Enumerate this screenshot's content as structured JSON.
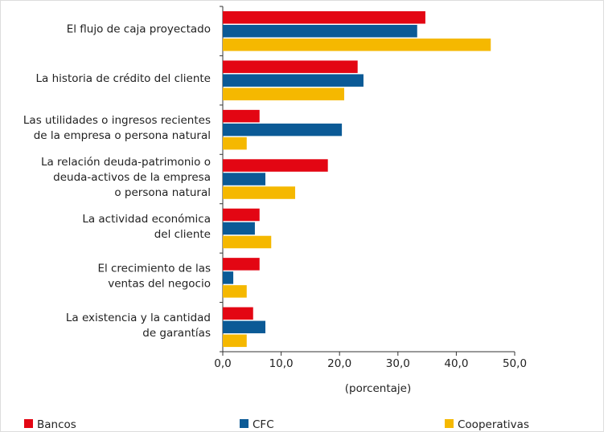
{
  "chart_data": {
    "type": "bar",
    "orientation": "horizontal",
    "categories": [
      [
        "El flujo de caja proyectado"
      ],
      [
        "La historia de crédito del cliente"
      ],
      [
        "Las utilidades o ingresos recientes",
        "de la empresa o persona natural"
      ],
      [
        "La relación deuda-patrimonio o",
        "deuda-activos de la empresa",
        "o persona natural"
      ],
      [
        "La actividad económica",
        "del cliente"
      ],
      [
        "El crecimiento de las",
        "ventas del negocio"
      ],
      [
        "La existencia y la cantidad",
        "de garantías"
      ]
    ],
    "series": [
      {
        "name": "Bancos",
        "color": "#e30613",
        "values": [
          34.7,
          23.1,
          6.3,
          18.0,
          6.3,
          6.3,
          5.2
        ]
      },
      {
        "name": "CFC",
        "color": "#0b5a96",
        "values": [
          33.3,
          24.1,
          20.4,
          7.3,
          5.5,
          1.8,
          7.3
        ]
      },
      {
        "name": "Cooperativas",
        "color": "#f5b800",
        "values": [
          45.9,
          20.8,
          4.1,
          12.4,
          8.3,
          4.1,
          4.1
        ]
      }
    ],
    "xlabel": "(porcentaje)",
    "xlim": [
      0,
      50
    ],
    "xticks": [
      {
        "value": 0,
        "label": "0,0"
      },
      {
        "value": 10,
        "label": "10,0"
      },
      {
        "value": 20,
        "label": "20,0"
      },
      {
        "value": 30,
        "label": "30,0"
      },
      {
        "value": 40,
        "label": "40,0"
      },
      {
        "value": 50,
        "label": "50,0"
      }
    ],
    "grid": false
  }
}
